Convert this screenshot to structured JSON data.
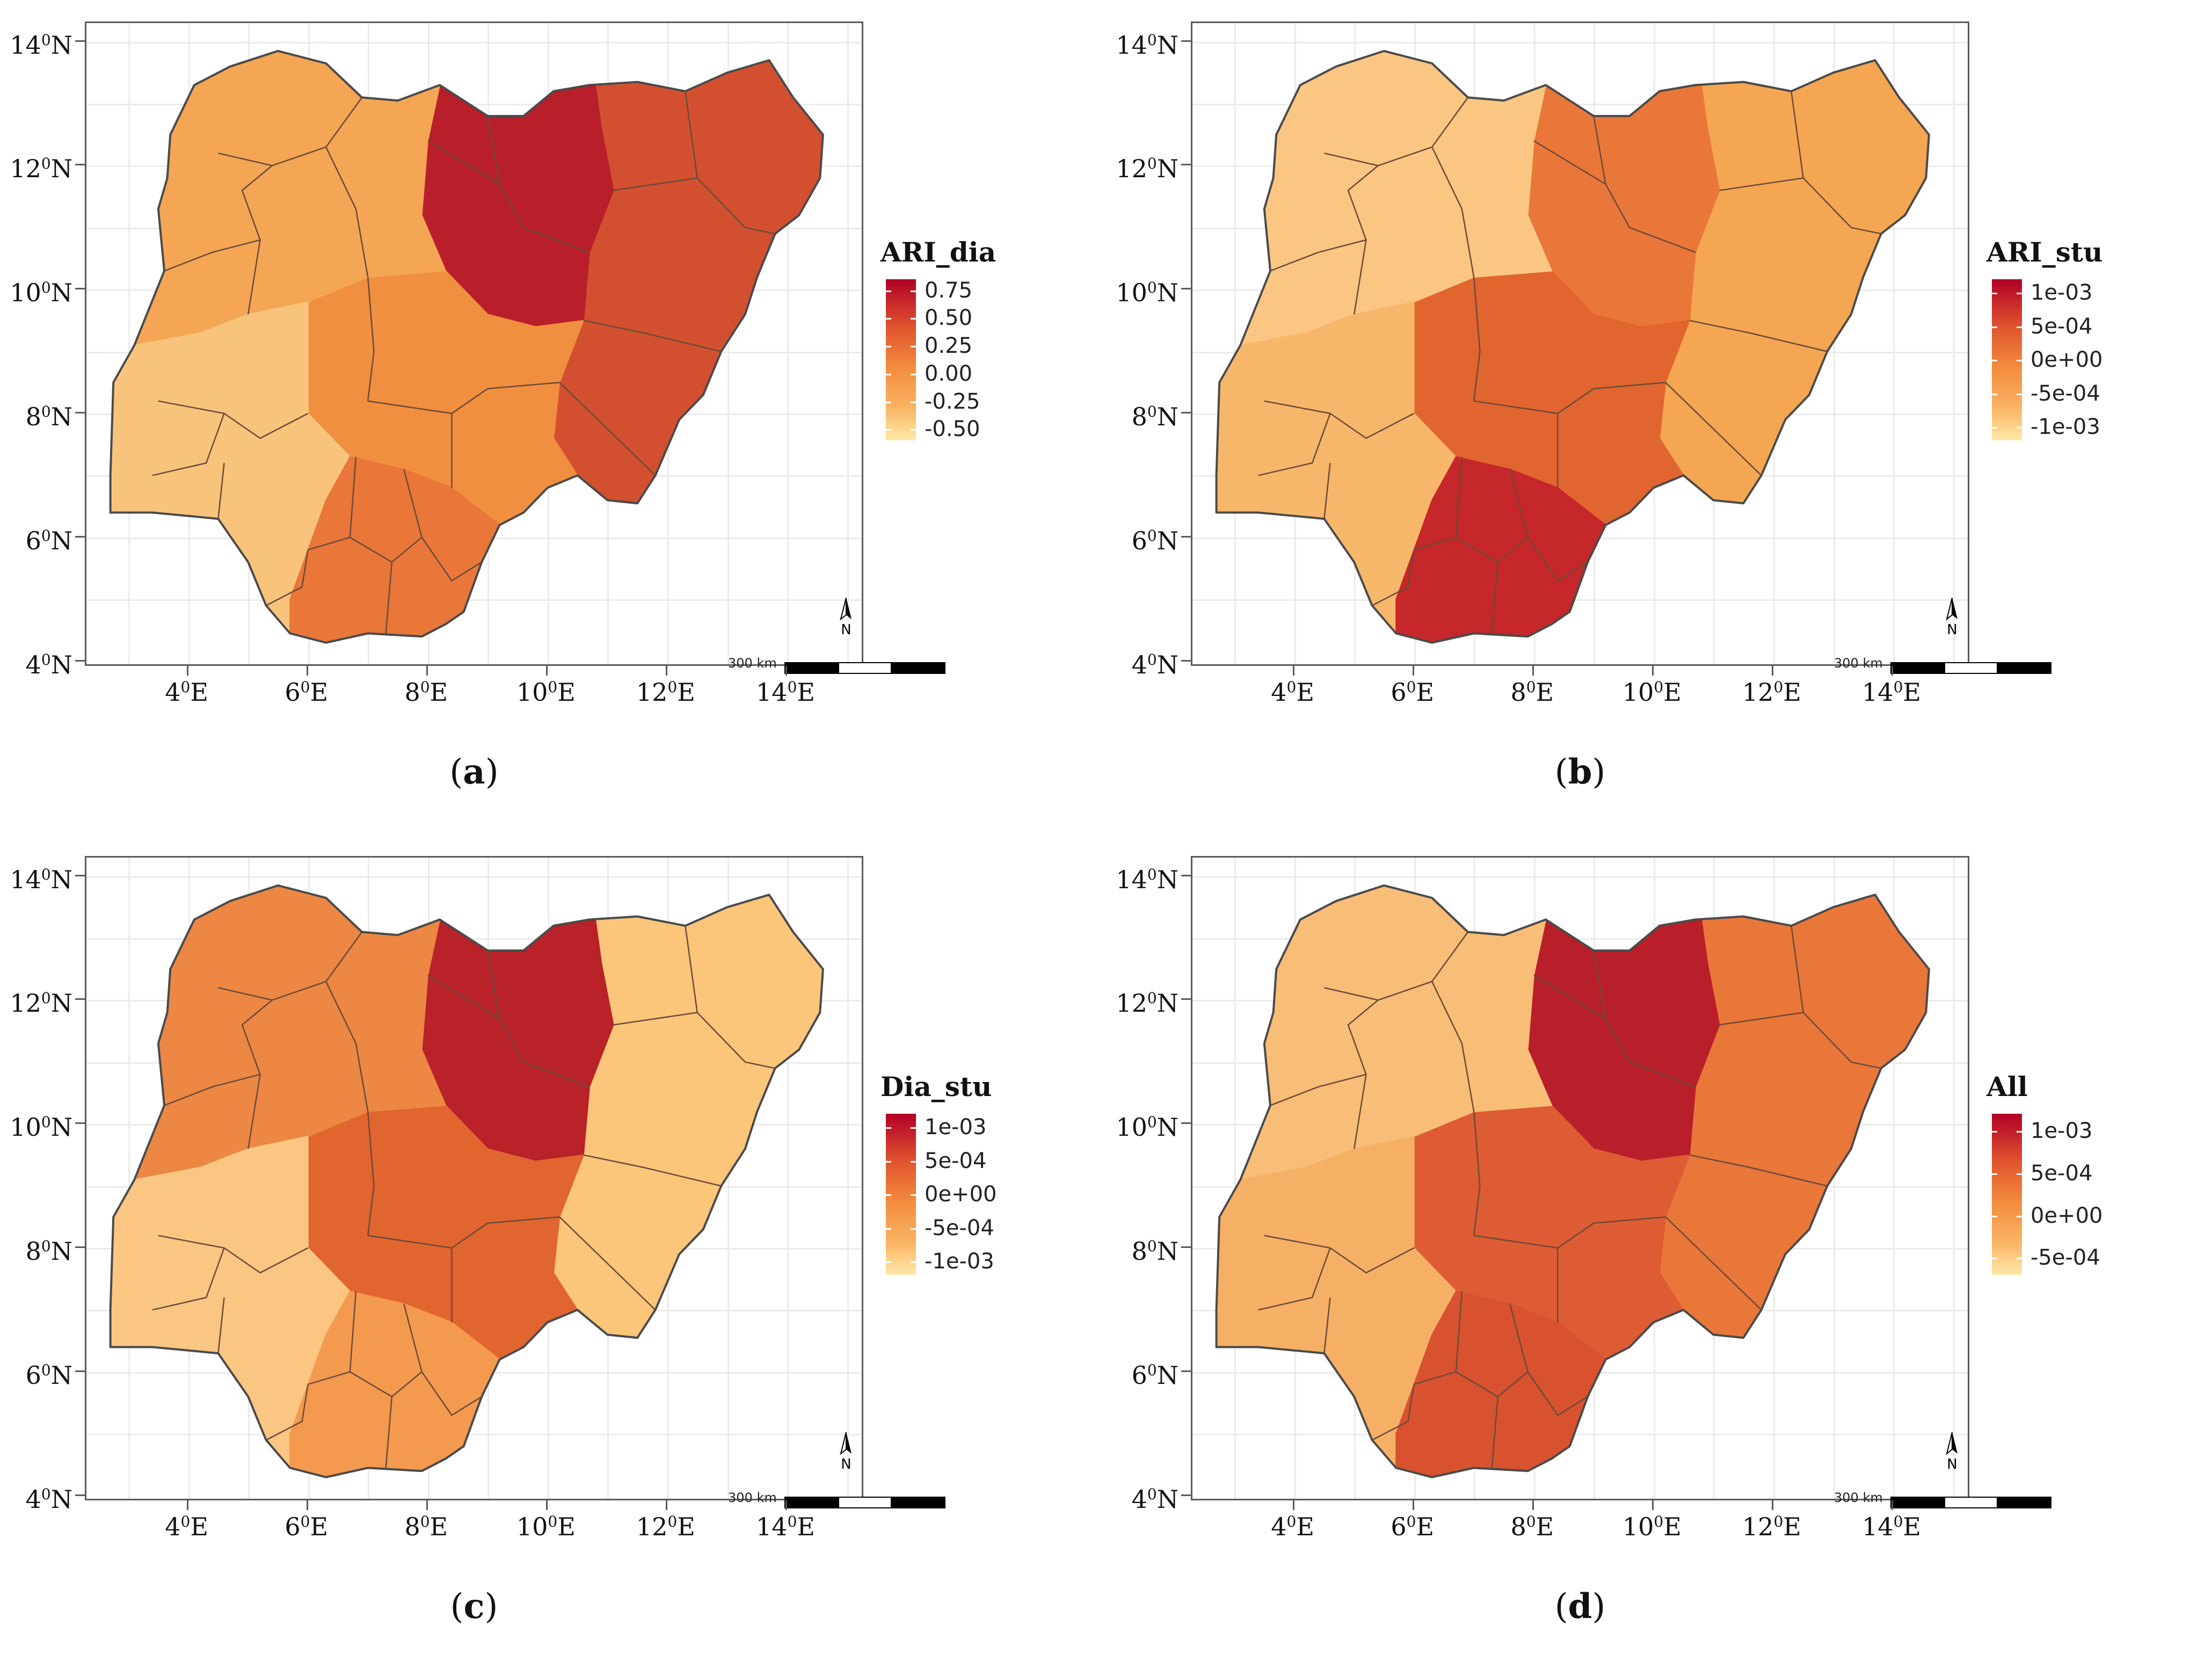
{
  "x_ticks": [
    "4",
    "6",
    "8",
    "10",
    "12",
    "14"
  ],
  "y_ticks": [
    "14",
    "12",
    "10",
    "8",
    "6",
    "4"
  ],
  "deg_sup": "0",
  "east_suffix": "E",
  "north_suffix": "N",
  "scale_label": "300 km",
  "panels": [
    {
      "id": "a",
      "caption_open": "(",
      "caption_letter": "a",
      "caption_close": ")",
      "legend_title": "ARI_dia",
      "legend_labels": [
        "0.75",
        "0.50",
        "0.25",
        "0.00",
        "-0.25",
        "-0.50"
      ],
      "legend_values": [
        0.75,
        0.5,
        0.25,
        0.0,
        -0.25,
        -0.5
      ],
      "legend_range": [
        -0.6,
        0.85
      ],
      "colors": {
        "northeast": "#d2502f",
        "north_center": "#b81f2a",
        "central": "#f08f40",
        "west": "#f4a654",
        "southwest": "#f8c47c",
        "south": "#e9773a"
      }
    },
    {
      "id": "b",
      "caption_open": "(",
      "caption_letter": "b",
      "caption_close": ")",
      "legend_title": "ARI_stu",
      "legend_labels": [
        "1e-03",
        "5e-04",
        "0e+00",
        "-5e-04",
        "-1e-03"
      ],
      "legend_values": [
        0.001,
        0.0005,
        0.0,
        -0.0005,
        -0.001
      ],
      "legend_range": [
        -0.0012,
        0.0012
      ],
      "colors": {
        "northeast": "#f5a652",
        "north_center": "#e9773a",
        "central": "#e1652f",
        "west": "#fac682",
        "southwest": "#f7b76a",
        "south": "#c5272a"
      }
    },
    {
      "id": "c",
      "caption_open": "(",
      "caption_letter": "c",
      "caption_close": ")",
      "legend_title": "Dia_stu",
      "legend_labels": [
        "1e-03",
        "5e-04",
        "0e+00",
        "-5e-04",
        "-1e-03"
      ],
      "legend_values": [
        0.001,
        0.0005,
        0.0,
        -0.0005,
        -0.001
      ],
      "legend_range": [
        -0.0012,
        0.0012
      ],
      "colors": {
        "northeast": "#fbc57a",
        "north_center": "#b82228",
        "central": "#e1652f",
        "west": "#ec8744",
        "southwest": "#fac682",
        "south": "#f49a4f"
      }
    },
    {
      "id": "d",
      "caption_open": "(",
      "caption_letter": "d",
      "caption_close": ")",
      "legend_title": "All",
      "legend_labels": [
        "1e-03",
        "5e-04",
        "0e+00",
        "-5e-04"
      ],
      "legend_values": [
        0.001,
        0.0005,
        0.0,
        -0.0005
      ],
      "legend_range": [
        -0.0007,
        0.0012
      ],
      "colors": {
        "northeast": "#e9773a",
        "north_center": "#b81f2a",
        "central": "#dd5c33",
        "west": "#f8bd76",
        "southwest": "#f6b065",
        "south": "#d8522f"
      }
    }
  ]
}
